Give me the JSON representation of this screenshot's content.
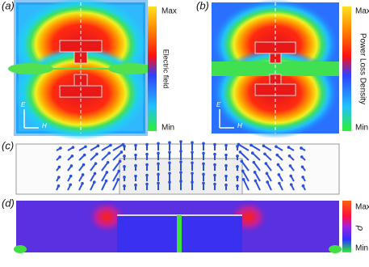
{
  "panels": [
    {
      "label": "(a)",
      "colorbar": {
        "max": "Max",
        "min": "Min",
        "title": "Electric field"
      },
      "axes": {
        "e": "E",
        "h": "H"
      }
    },
    {
      "label": "(b)",
      "colorbar": {
        "max": "Max",
        "min": "Min",
        "title": "Power Loss Density"
      },
      "axes": {
        "e": "E",
        "h": "H"
      }
    },
    {
      "label": "(c)"
    },
    {
      "label": "(d)",
      "colorbar": {
        "max": "Max",
        "min": "Min",
        "title": "ρ"
      }
    }
  ]
}
